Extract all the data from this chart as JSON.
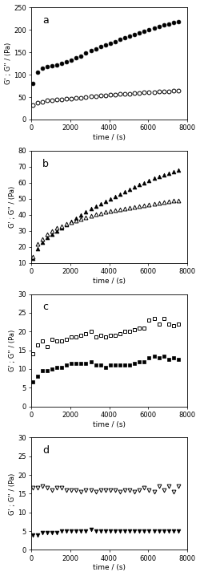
{
  "panels": [
    {
      "label": "a",
      "ylim": [
        0,
        250
      ],
      "yticks": [
        0,
        50,
        100,
        150,
        200,
        250
      ],
      "series": [
        {
          "marker": "o",
          "filled": true,
          "x": [
            50,
            300,
            550,
            800,
            1050,
            1300,
            1550,
            1800,
            2050,
            2300,
            2550,
            2800,
            3050,
            3300,
            3550,
            3800,
            4050,
            4300,
            4550,
            4800,
            5050,
            5300,
            5550,
            5800,
            6050,
            6300,
            6550,
            6800,
            7050,
            7300,
            7550
          ],
          "y": [
            80,
            105,
            115,
            118,
            120,
            122,
            125,
            128,
            132,
            137,
            142,
            148,
            153,
            158,
            162,
            166,
            170,
            174,
            178,
            182,
            186,
            190,
            193,
            197,
            200,
            203,
            207,
            210,
            213,
            216,
            218
          ]
        },
        {
          "marker": "o",
          "filled": false,
          "x": [
            50,
            300,
            550,
            800,
            1050,
            1300,
            1550,
            1800,
            2050,
            2300,
            2550,
            2800,
            3050,
            3300,
            3550,
            3800,
            4050,
            4300,
            4550,
            4800,
            5050,
            5300,
            5550,
            5800,
            6050,
            6300,
            6550,
            6800,
            7050,
            7300,
            7550
          ],
          "y": [
            33,
            38,
            40,
            42,
            43,
            44,
            45,
            46,
            47,
            48,
            49,
            50,
            51,
            52,
            53,
            54,
            55,
            56,
            57,
            57.5,
            58,
            59,
            59.5,
            60,
            61,
            61.5,
            62,
            62.5,
            63,
            63.5,
            64
          ]
        }
      ]
    },
    {
      "label": "b",
      "ylim": [
        10,
        80
      ],
      "yticks": [
        10,
        20,
        30,
        40,
        50,
        60,
        70,
        80
      ],
      "series": [
        {
          "marker": "^",
          "filled": true,
          "x": [
            50,
            300,
            550,
            800,
            1050,
            1300,
            1550,
            1800,
            2050,
            2300,
            2550,
            2800,
            3050,
            3300,
            3550,
            3800,
            4050,
            4300,
            4550,
            4800,
            5050,
            5300,
            5550,
            5800,
            6050,
            6300,
            6550,
            6800,
            7050,
            7300,
            7550
          ],
          "y": [
            13,
            19,
            23,
            26,
            28,
            30,
            32,
            34,
            36,
            38,
            40,
            42,
            44,
            45.5,
            47,
            48.5,
            50,
            51.5,
            53,
            54.5,
            56,
            57.5,
            59,
            60,
            61.5,
            63,
            64,
            65,
            66,
            67,
            68
          ]
        },
        {
          "marker": "^",
          "filled": false,
          "x": [
            50,
            300,
            550,
            800,
            1050,
            1300,
            1550,
            1800,
            2050,
            2300,
            2550,
            2800,
            3050,
            3300,
            3550,
            3800,
            4050,
            4300,
            4550,
            4800,
            5050,
            5300,
            5550,
            5800,
            6050,
            6300,
            6550,
            6800,
            7050,
            7300,
            7550
          ],
          "y": [
            14,
            22,
            25,
            28,
            30,
            32,
            33,
            34.5,
            35.5,
            36.5,
            37.5,
            38.5,
            39.5,
            40.5,
            41,
            42,
            42.5,
            43,
            43.5,
            44,
            44.5,
            45,
            45.5,
            46,
            46.5,
            47,
            47.5,
            48,
            48.5,
            48.8,
            49
          ]
        }
      ]
    },
    {
      "label": "c",
      "ylim": [
        0,
        30
      ],
      "yticks": [
        0,
        5,
        10,
        15,
        20,
        25,
        30
      ],
      "series": [
        {
          "marker": "s",
          "filled": false,
          "x": [
            50,
            300,
            550,
            800,
            1050,
            1300,
            1550,
            1800,
            2050,
            2300,
            2550,
            2800,
            3050,
            3300,
            3550,
            3800,
            4050,
            4300,
            4550,
            4800,
            5050,
            5300,
            5550,
            5800,
            6050,
            6300,
            6550,
            6800,
            7050,
            7300,
            7550
          ],
          "y": [
            14,
            16.5,
            17.5,
            16,
            18,
            17.5,
            17.5,
            18,
            18.5,
            18.5,
            19,
            19.5,
            20,
            18.5,
            19,
            18.5,
            19,
            19,
            19.5,
            20,
            20,
            20.5,
            21,
            21,
            23,
            23.5,
            22,
            23.5,
            22,
            21.5,
            22
          ]
        },
        {
          "marker": "s",
          "filled": true,
          "x": [
            50,
            300,
            550,
            800,
            1050,
            1300,
            1550,
            1800,
            2050,
            2300,
            2550,
            2800,
            3050,
            3300,
            3550,
            3800,
            4050,
            4300,
            4550,
            4800,
            5050,
            5300,
            5550,
            5800,
            6050,
            6300,
            6550,
            6800,
            7050,
            7300,
            7550
          ],
          "y": [
            6.5,
            8,
            9.5,
            9.5,
            10,
            10.5,
            10.5,
            11,
            11.5,
            11.5,
            11.5,
            11.5,
            12,
            11,
            11,
            10.5,
            11,
            11,
            11,
            11,
            11,
            11.5,
            12,
            12,
            13,
            13.5,
            13,
            13.5,
            12.5,
            13,
            12.5
          ]
        }
      ]
    },
    {
      "label": "d",
      "ylim": [
        0,
        30
      ],
      "yticks": [
        0,
        5,
        10,
        15,
        20,
        25,
        30
      ],
      "series": [
        {
          "marker": "v",
          "filled": false,
          "x": [
            50,
            300,
            550,
            800,
            1050,
            1300,
            1550,
            1800,
            2050,
            2300,
            2550,
            2800,
            3050,
            3300,
            3550,
            3800,
            4050,
            4300,
            4550,
            4800,
            5050,
            5300,
            5550,
            5800,
            6050,
            6300,
            6550,
            6800,
            7050,
            7300,
            7550
          ],
          "y": [
            16.5,
            16.5,
            17,
            16.5,
            16,
            16.5,
            16.5,
            16,
            16,
            16,
            15.5,
            16,
            16,
            15.5,
            16,
            16,
            16,
            16,
            15.5,
            16,
            16,
            15.5,
            16,
            16.5,
            16,
            15.5,
            17,
            16,
            17,
            15.5,
            17
          ]
        },
        {
          "marker": "v",
          "filled": true,
          "x": [
            50,
            300,
            550,
            800,
            1050,
            1300,
            1550,
            1800,
            2050,
            2300,
            2550,
            2800,
            3050,
            3300,
            3550,
            3800,
            4050,
            4300,
            4550,
            4800,
            5050,
            5300,
            5550,
            5800,
            6050,
            6300,
            6550,
            6800,
            7050,
            7300,
            7550
          ],
          "y": [
            4,
            4,
            4.5,
            4.5,
            4.5,
            4.5,
            5,
            5,
            5,
            5,
            5,
            5,
            5.5,
            5,
            5,
            5,
            5,
            5,
            5,
            5,
            5,
            5,
            5,
            5,
            5,
            5,
            5,
            5,
            5,
            5,
            5
          ]
        }
      ]
    }
  ],
  "xlabel": "time / (s)",
  "ylabel": "G' ; G'' / (Pa)",
  "xlim": [
    0,
    8000
  ],
  "xticks": [
    0,
    2000,
    4000,
    6000,
    8000
  ],
  "marker_size": 3.5,
  "background_color": "#ffffff"
}
